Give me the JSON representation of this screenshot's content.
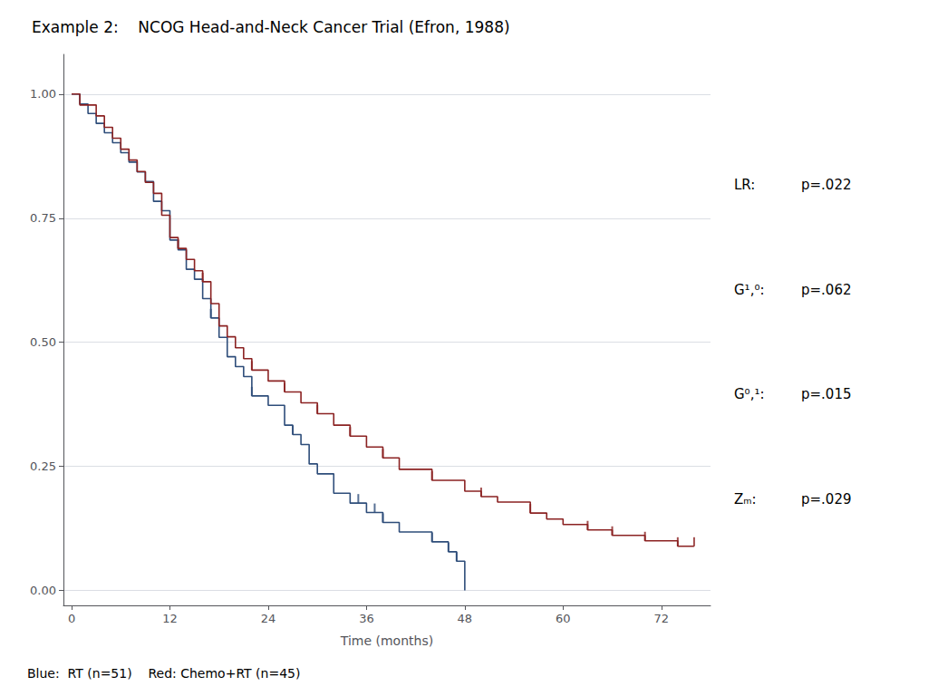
{
  "chart_data": {
    "type": "line",
    "title": "Example 2:    NCOG Head-and-Neck Cancer Trial (Efron, 1988)",
    "xlabel": "Time (months)",
    "xlim": [
      -1,
      78
    ],
    "ylim": [
      -0.03,
      1.08
    ],
    "xticks": [
      0,
      12,
      24,
      36,
      48,
      60,
      72
    ],
    "yticks": [
      {
        "value": 0.0,
        "label": "0.00"
      },
      {
        "value": 0.25,
        "label": "0.25"
      },
      {
        "value": 0.5,
        "label": "0.50"
      },
      {
        "value": 0.75,
        "label": "0.75"
      },
      {
        "value": 1.0,
        "label": "1.00"
      }
    ],
    "grid": "y",
    "annotations": [
      {
        "text": "Blue:  RT (n=51)    Red: Chemo+RT (n=45)"
      },
      {
        "label": "LR:",
        "text": "p=.022"
      },
      {
        "label": "G¹,⁰:",
        "text": "p=.062"
      },
      {
        "label": "G⁰,¹:",
        "text": "p=.015"
      },
      {
        "label": "Zₘ:",
        "text": "p=.029"
      }
    ],
    "series": [
      {
        "type": "line",
        "line_style": "step",
        "color": "#2e4d7a",
        "x": [
          0,
          1,
          1,
          2,
          2,
          3,
          3,
          4,
          5,
          5,
          6,
          7,
          7,
          8,
          9,
          10,
          10,
          11,
          12,
          12,
          13,
          14,
          15,
          16,
          17,
          18,
          19,
          20,
          21,
          22,
          24,
          26,
          27,
          28,
          29,
          30,
          32,
          34,
          36,
          38,
          40,
          44,
          46,
          47,
          48
        ],
        "values": [
          1.0,
          1.0,
          0.98,
          0.98,
          0.961,
          0.961,
          0.941,
          0.922,
          0.922,
          0.902,
          0.882,
          0.882,
          0.863,
          0.843,
          0.824,
          0.824,
          0.784,
          0.765,
          0.765,
          0.706,
          0.686,
          0.647,
          0.627,
          0.588,
          0.549,
          0.51,
          0.471,
          0.451,
          0.431,
          0.392,
          0.373,
          0.333,
          0.314,
          0.294,
          0.255,
          0.235,
          0.196,
          0.176,
          0.157,
          0.137,
          0.118,
          0.098,
          0.078,
          0.059,
          0.0
        ]
      },
      {
        "type": "line",
        "line_style": "step",
        "color": "#8b2222",
        "x": [
          0,
          1,
          1,
          2,
          3,
          3,
          4,
          5,
          5,
          6,
          7,
          7,
          8,
          9,
          9,
          10,
          11,
          11,
          12,
          12,
          13,
          14,
          15,
          16,
          17,
          18,
          19,
          20,
          21,
          22,
          24,
          26,
          28,
          30,
          32,
          34,
          36,
          38,
          40,
          44,
          48,
          50,
          52,
          56,
          58,
          60,
          63,
          66,
          70,
          74,
          76
        ],
        "values": [
          1.0,
          1.0,
          0.978,
          0.978,
          0.978,
          0.956,
          0.933,
          0.933,
          0.911,
          0.889,
          0.889,
          0.867,
          0.844,
          0.844,
          0.822,
          0.8,
          0.8,
          0.756,
          0.756,
          0.711,
          0.689,
          0.667,
          0.644,
          0.622,
          0.578,
          0.533,
          0.511,
          0.489,
          0.467,
          0.444,
          0.422,
          0.4,
          0.378,
          0.356,
          0.333,
          0.311,
          0.289,
          0.267,
          0.244,
          0.222,
          0.2,
          0.189,
          0.178,
          0.156,
          0.144,
          0.133,
          0.122,
          0.111,
          0.1,
          0.089,
          0.089
        ]
      },
      {
        "type": "scatter",
        "marker": "|",
        "color": "#2e4d7a",
        "x": [
          17,
          22,
          27,
          35,
          37,
          38,
          44,
          46,
          47
        ],
        "values": [
          0.549,
          0.392,
          0.314,
          0.176,
          0.157,
          0.137,
          0.098,
          0.078,
          0.059
        ]
      },
      {
        "type": "scatter",
        "marker": "|",
        "color": "#8b2222",
        "x": [
          13,
          16,
          22,
          26,
          30,
          34,
          38,
          44,
          50,
          56,
          63,
          66,
          70,
          74,
          76
        ],
        "values": [
          0.689,
          0.622,
          0.444,
          0.4,
          0.356,
          0.311,
          0.267,
          0.222,
          0.189,
          0.156,
          0.122,
          0.111,
          0.1,
          0.089,
          0.089
        ]
      }
    ]
  }
}
